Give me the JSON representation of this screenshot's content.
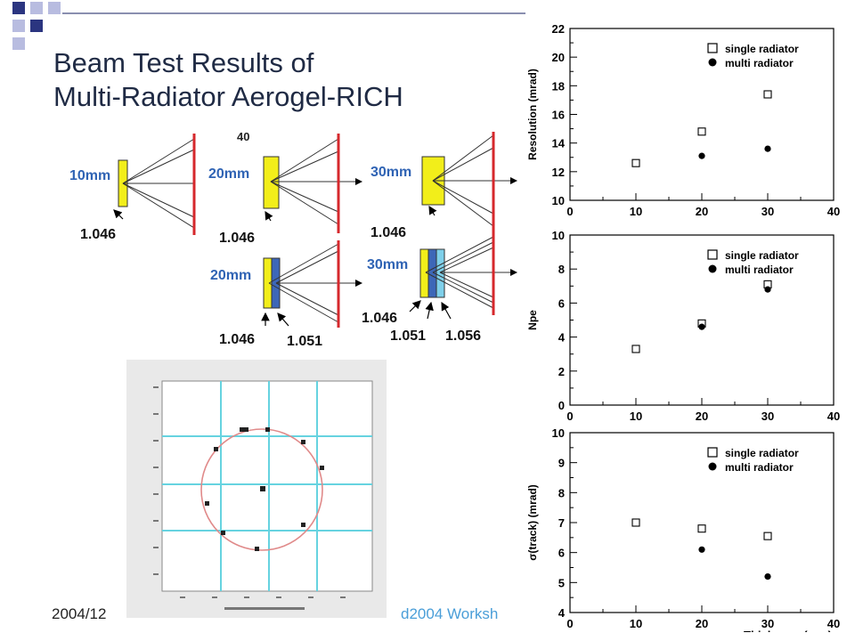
{
  "title": {
    "line1": "Beam Test Results of",
    "line2": "Multi-Radiator Aerogel-RICH"
  },
  "footer": {
    "date": "2004/12",
    "event": "d2004 Worksh"
  },
  "diagrams": {
    "cut_label": "40",
    "configs": [
      {
        "thickness": "10mm",
        "indices": [
          "1.046"
        ]
      },
      {
        "thickness": "20mm",
        "indices": [
          "1.046"
        ]
      },
      {
        "thickness": "30mm",
        "indices": [
          "1.046"
        ]
      },
      {
        "thickness": "20mm",
        "indices": [
          "1.046",
          "1.051"
        ]
      },
      {
        "thickness": "30mm",
        "indices": [
          "1.046",
          "1.051",
          "1.056"
        ]
      }
    ]
  },
  "colors": {
    "yellow_block": "#f2ee1a",
    "blue_block": "#3d67b8",
    "light_blue_block": "#7fd0ea",
    "mirror_red": "#d6282c",
    "label_blue": "#2f63b4",
    "deco_navy": "#2b3580",
    "deco_lavender": "#b8bce0"
  },
  "chart_data": [
    {
      "type": "scatter",
      "ylabel": "Resolution (mrad)",
      "xlabel": "",
      "xlim": [
        0,
        40
      ],
      "ylim": [
        10,
        22
      ],
      "xticks": [
        "0",
        "10",
        "20",
        "30",
        "40"
      ],
      "yticks": [
        "10",
        "12",
        "14",
        "16",
        "18",
        "20",
        "22"
      ],
      "legend_position": "top-right",
      "series": [
        {
          "name": "single radiator",
          "marker": "open-square",
          "x": [
            10,
            20,
            30
          ],
          "y": [
            12.6,
            14.8,
            17.4
          ]
        },
        {
          "name": "multi radiator",
          "marker": "filled-circle",
          "x": [
            20,
            30
          ],
          "y": [
            13.1,
            13.6
          ]
        }
      ]
    },
    {
      "type": "scatter",
      "ylabel": "Npe",
      "xlabel": "",
      "xlim": [
        0,
        40
      ],
      "ylim": [
        0,
        10
      ],
      "xticks": [
        "0",
        "10",
        "20",
        "30",
        "40"
      ],
      "yticks": [
        "0",
        "2",
        "4",
        "6",
        "8",
        "10"
      ],
      "legend_position": "top-right",
      "series": [
        {
          "name": "single radiator",
          "marker": "open-square",
          "x": [
            10,
            20,
            30
          ],
          "y": [
            3.3,
            4.8,
            7.1
          ]
        },
        {
          "name": "multi radiator",
          "marker": "filled-circle",
          "x": [
            20,
            30
          ],
          "y": [
            4.6,
            6.8
          ]
        }
      ]
    },
    {
      "type": "scatter",
      "ylabel": "σ(track) (mrad)",
      "xlabel": "Thickness (mm)",
      "xlim": [
        0,
        40
      ],
      "ylim": [
        4,
        10
      ],
      "xticks": [
        "0",
        "10",
        "20",
        "30",
        "40"
      ],
      "yticks": [
        "4",
        "5",
        "6",
        "7",
        "8",
        "9",
        "10"
      ],
      "legend_position": "top-right",
      "series": [
        {
          "name": "single radiator",
          "marker": "open-square",
          "x": [
            10,
            20,
            30
          ],
          "y": [
            7.0,
            6.8,
            6.55
          ]
        },
        {
          "name": "multi radiator",
          "marker": "filled-circle",
          "x": [
            20,
            30
          ],
          "y": [
            6.1,
            5.2
          ]
        }
      ]
    }
  ]
}
